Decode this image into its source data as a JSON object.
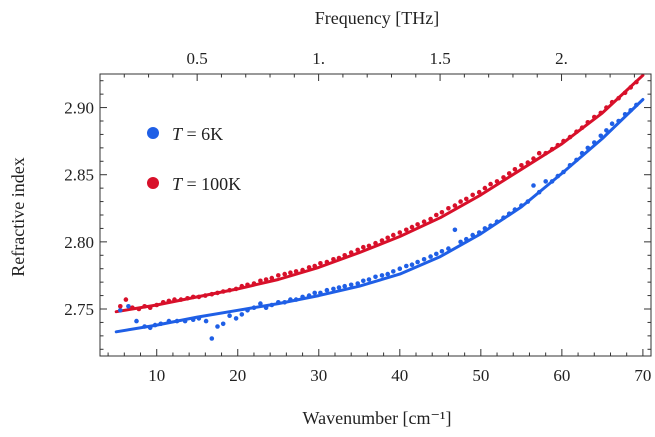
{
  "chart_data": {
    "type": "scatter",
    "xlabel": "Wavenumber [cm⁻¹]",
    "ylabel": "Refractive index",
    "x2label": "Frequency [THz]",
    "xlim": [
      3,
      71
    ],
    "ylim": [
      2.715,
      2.925
    ],
    "xticks": [
      10,
      20,
      30,
      40,
      50,
      60,
      70
    ],
    "yticks": [
      2.75,
      2.8,
      2.85,
      2.9
    ],
    "ytick_labels": [
      "2.75",
      "2.80",
      "2.85",
      "2.90"
    ],
    "x2ticks": [
      {
        "value": 0.5,
        "label": "0.5"
      },
      {
        "value": 1.0,
        "label": "1."
      },
      {
        "value": 1.5,
        "label": "1.5"
      },
      {
        "value": 2.0,
        "label": "2."
      }
    ],
    "legend_placement": "top-left",
    "series": [
      {
        "name_prefix": "T",
        "name_suffix": " = 6K",
        "color": "#1f5fe6",
        "points": [
          [
            5.5,
            2.749
          ],
          [
            6.5,
            2.752
          ],
          [
            7.5,
            2.741
          ],
          [
            8.5,
            2.737
          ],
          [
            9.2,
            2.736
          ],
          [
            9.8,
            2.738
          ],
          [
            10.5,
            2.739
          ],
          [
            11.5,
            2.741
          ],
          [
            12.5,
            2.741
          ],
          [
            13.5,
            2.741
          ],
          [
            14.5,
            2.742
          ],
          [
            15.2,
            2.743
          ],
          [
            16.1,
            2.741
          ],
          [
            16.8,
            2.728
          ],
          [
            17.5,
            2.737
          ],
          [
            18.2,
            2.739
          ],
          [
            19.0,
            2.745
          ],
          [
            19.8,
            2.743
          ],
          [
            20.5,
            2.746
          ],
          [
            21.2,
            2.749
          ],
          [
            22.0,
            2.751
          ],
          [
            22.8,
            2.754
          ],
          [
            23.5,
            2.751
          ],
          [
            24.2,
            2.753
          ],
          [
            25.0,
            2.755
          ],
          [
            25.8,
            2.755
          ],
          [
            26.5,
            2.757
          ],
          [
            27.2,
            2.757
          ],
          [
            28.0,
            2.759
          ],
          [
            28.8,
            2.76
          ],
          [
            29.5,
            2.762
          ],
          [
            30.2,
            2.762
          ],
          [
            31.0,
            2.764
          ],
          [
            31.8,
            2.765
          ],
          [
            32.5,
            2.766
          ],
          [
            33.2,
            2.767
          ],
          [
            34.0,
            2.768
          ],
          [
            34.8,
            2.769
          ],
          [
            35.5,
            2.771
          ],
          [
            36.2,
            2.772
          ],
          [
            37.0,
            2.774
          ],
          [
            37.8,
            2.775
          ],
          [
            38.5,
            2.776
          ],
          [
            39.2,
            2.778
          ],
          [
            40.0,
            2.78
          ],
          [
            40.8,
            2.782
          ],
          [
            41.5,
            2.783
          ],
          [
            42.2,
            2.785
          ],
          [
            43.0,
            2.787
          ],
          [
            43.8,
            2.789
          ],
          [
            44.5,
            2.791
          ],
          [
            45.2,
            2.793
          ],
          [
            46.0,
            2.795
          ],
          [
            46.8,
            2.809
          ],
          [
            47.5,
            2.8
          ],
          [
            48.2,
            2.802
          ],
          [
            49.0,
            2.805
          ],
          [
            49.8,
            2.807
          ],
          [
            50.5,
            2.81
          ],
          [
            51.2,
            2.812
          ],
          [
            52.0,
            2.815
          ],
          [
            52.8,
            2.818
          ],
          [
            53.5,
            2.821
          ],
          [
            54.2,
            2.824
          ],
          [
            55.0,
            2.827
          ],
          [
            55.8,
            2.83
          ],
          [
            56.5,
            2.842
          ],
          [
            57.2,
            2.837
          ],
          [
            58.0,
            2.845
          ],
          [
            58.8,
            2.845
          ],
          [
            59.5,
            2.849
          ],
          [
            60.2,
            2.852
          ],
          [
            61.0,
            2.857
          ],
          [
            61.8,
            2.861
          ],
          [
            62.5,
            2.866
          ],
          [
            63.2,
            2.87
          ],
          [
            64.0,
            2.874
          ],
          [
            64.8,
            2.879
          ],
          [
            65.5,
            2.883
          ],
          [
            66.2,
            2.888
          ],
          [
            67.0,
            2.89
          ],
          [
            67.8,
            2.895
          ],
          [
            68.5,
            2.898
          ],
          [
            69.2,
            2.902
          ]
        ],
        "fit": [
          [
            5,
            2.733
          ],
          [
            10,
            2.738
          ],
          [
            15,
            2.744
          ],
          [
            20,
            2.749
          ],
          [
            25,
            2.754
          ],
          [
            30,
            2.76
          ],
          [
            35,
            2.767
          ],
          [
            40,
            2.776
          ],
          [
            45,
            2.789
          ],
          [
            50,
            2.806
          ],
          [
            55,
            2.826
          ],
          [
            60,
            2.851
          ],
          [
            65,
            2.877
          ],
          [
            70,
            2.906
          ]
        ]
      },
      {
        "name_prefix": "T",
        "name_suffix": " = 100K",
        "color": "#d8102a",
        "points": [
          [
            5.5,
            2.752
          ],
          [
            6.2,
            2.757
          ],
          [
            7.0,
            2.751
          ],
          [
            7.8,
            2.75
          ],
          [
            8.5,
            2.752
          ],
          [
            9.2,
            2.751
          ],
          [
            10.0,
            2.753
          ],
          [
            10.8,
            2.755
          ],
          [
            11.5,
            2.756
          ],
          [
            12.2,
            2.757
          ],
          [
            13.0,
            2.757
          ],
          [
            13.8,
            2.758
          ],
          [
            14.5,
            2.759
          ],
          [
            15.2,
            2.759
          ],
          [
            16.0,
            2.76
          ],
          [
            16.8,
            2.761
          ],
          [
            17.5,
            2.762
          ],
          [
            18.2,
            2.763
          ],
          [
            19.0,
            2.764
          ],
          [
            19.8,
            2.765
          ],
          [
            20.5,
            2.767
          ],
          [
            21.2,
            2.768
          ],
          [
            22.0,
            2.769
          ],
          [
            22.8,
            2.771
          ],
          [
            23.5,
            2.772
          ],
          [
            24.2,
            2.773
          ],
          [
            25.0,
            2.775
          ],
          [
            25.8,
            2.776
          ],
          [
            26.5,
            2.777
          ],
          [
            27.2,
            2.778
          ],
          [
            28.0,
            2.779
          ],
          [
            28.8,
            2.781
          ],
          [
            29.5,
            2.782
          ],
          [
            30.2,
            2.784
          ],
          [
            31.0,
            2.785
          ],
          [
            31.8,
            2.787
          ],
          [
            32.5,
            2.788
          ],
          [
            33.2,
            2.79
          ],
          [
            34.0,
            2.792
          ],
          [
            34.8,
            2.794
          ],
          [
            35.5,
            2.796
          ],
          [
            36.2,
            2.797
          ],
          [
            37.0,
            2.799
          ],
          [
            37.8,
            2.801
          ],
          [
            38.5,
            2.803
          ],
          [
            39.2,
            2.805
          ],
          [
            40.0,
            2.807
          ],
          [
            40.8,
            2.809
          ],
          [
            41.5,
            2.811
          ],
          [
            42.2,
            2.813
          ],
          [
            43.0,
            2.815
          ],
          [
            43.8,
            2.817
          ],
          [
            44.5,
            2.82
          ],
          [
            45.2,
            2.822
          ],
          [
            46.0,
            2.825
          ],
          [
            46.8,
            2.827
          ],
          [
            47.5,
            2.83
          ],
          [
            48.2,
            2.832
          ],
          [
            49.0,
            2.835
          ],
          [
            49.8,
            2.837
          ],
          [
            50.5,
            2.84
          ],
          [
            51.2,
            2.843
          ],
          [
            52.0,
            2.845
          ],
          [
            52.8,
            2.848
          ],
          [
            53.5,
            2.851
          ],
          [
            54.2,
            2.854
          ],
          [
            55.0,
            2.857
          ],
          [
            55.8,
            2.859
          ],
          [
            56.5,
            2.862
          ],
          [
            57.2,
            2.866
          ],
          [
            58.0,
            2.866
          ],
          [
            58.8,
            2.869
          ],
          [
            59.5,
            2.872
          ],
          [
            60.2,
            2.875
          ],
          [
            61.0,
            2.878
          ],
          [
            61.8,
            2.882
          ],
          [
            62.5,
            2.885
          ],
          [
            63.2,
            2.889
          ],
          [
            64.0,
            2.893
          ],
          [
            64.8,
            2.896
          ],
          [
            65.5,
            2.9
          ],
          [
            66.2,
            2.904
          ],
          [
            67.0,
            2.907
          ],
          [
            67.8,
            2.911
          ],
          [
            68.5,
            2.915
          ],
          [
            69.2,
            2.919
          ]
        ],
        "fit": [
          [
            5,
            2.748
          ],
          [
            10,
            2.753
          ],
          [
            15,
            2.759
          ],
          [
            20,
            2.765
          ],
          [
            25,
            2.772
          ],
          [
            30,
            2.781
          ],
          [
            35,
            2.792
          ],
          [
            40,
            2.804
          ],
          [
            45,
            2.818
          ],
          [
            50,
            2.835
          ],
          [
            55,
            2.854
          ],
          [
            60,
            2.873
          ],
          [
            65,
            2.896
          ],
          [
            70,
            2.924
          ]
        ]
      }
    ]
  }
}
